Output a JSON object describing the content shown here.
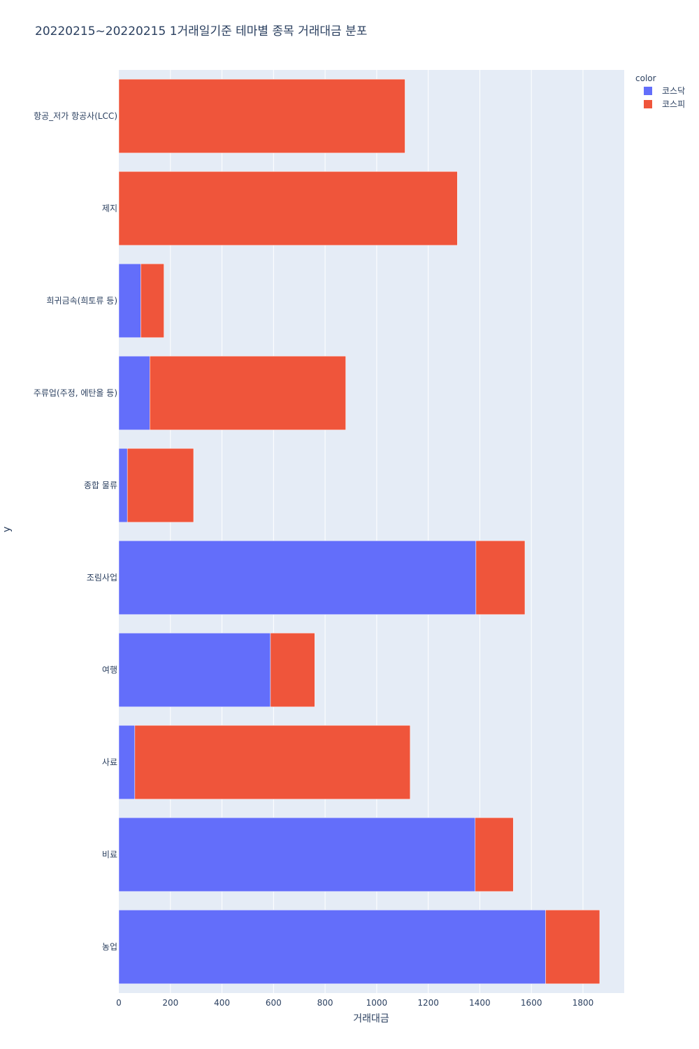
{
  "chart_data": {
    "type": "bar",
    "orientation": "horizontal",
    "barmode": "stack",
    "title": "20220215~20220215 1거래일기준 테마별 종목 거래대금 분포",
    "xlabel": "거래대금",
    "ylabel": "y",
    "xlim": [
      0,
      1960
    ],
    "xticks": [
      0,
      200,
      400,
      600,
      800,
      1000,
      1200,
      1400,
      1600,
      1800
    ],
    "grid": true,
    "legend_title": "color",
    "legend_position": "top-right",
    "categories": [
      "항공_저가 항공사(LCC)",
      "제지",
      "희귀금속(희토류 등)",
      "주류업(주정, 에탄올 등)",
      "종합 물류",
      "조림사업",
      "여행",
      "사료",
      "비료",
      "농업"
    ],
    "series": [
      {
        "name": "코스닥",
        "color": "#636efa",
        "values": [
          0,
          0,
          85,
          120,
          33,
          1385,
          588,
          62,
          1382,
          1655
        ]
      },
      {
        "name": "코스피",
        "color": "#ef553b",
        "values": [
          1110,
          1313,
          90,
          760,
          257,
          190,
          172,
          1068,
          148,
          210
        ]
      }
    ]
  }
}
